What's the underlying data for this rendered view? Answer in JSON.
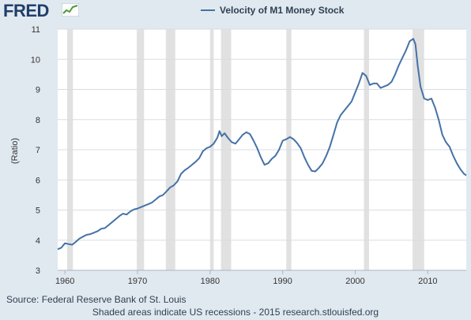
{
  "logo": {
    "text": "FRED"
  },
  "chart_data": {
    "type": "line",
    "title": "Velocity of M1 Money Stock",
    "ylabel": "(Ratio)",
    "xlabel": "",
    "xlim": [
      1959,
      2015.3
    ],
    "ylim": [
      3,
      11
    ],
    "x_ticks": [
      1960,
      1970,
      1980,
      1990,
      2000,
      2010
    ],
    "y_ticks": [
      3,
      4,
      5,
      6,
      7,
      8,
      9,
      10,
      11
    ],
    "grid": true,
    "series": [
      {
        "name": "Velocity of M1 Money Stock",
        "color": "#4572a7",
        "points": [
          [
            1959.0,
            3.7
          ],
          [
            1959.5,
            3.75
          ],
          [
            1960.0,
            3.9
          ],
          [
            1960.5,
            3.87
          ],
          [
            1961.0,
            3.85
          ],
          [
            1961.5,
            3.95
          ],
          [
            1962.0,
            4.05
          ],
          [
            1962.5,
            4.12
          ],
          [
            1963.0,
            4.18
          ],
          [
            1963.5,
            4.2
          ],
          [
            1964.0,
            4.25
          ],
          [
            1964.5,
            4.3
          ],
          [
            1965.0,
            4.38
          ],
          [
            1965.5,
            4.4
          ],
          [
            1966.0,
            4.5
          ],
          [
            1966.5,
            4.6
          ],
          [
            1967.0,
            4.7
          ],
          [
            1967.5,
            4.8
          ],
          [
            1968.0,
            4.88
          ],
          [
            1968.5,
            4.85
          ],
          [
            1969.0,
            4.95
          ],
          [
            1969.5,
            5.02
          ],
          [
            1970.0,
            5.05
          ],
          [
            1970.5,
            5.1
          ],
          [
            1971.0,
            5.15
          ],
          [
            1971.5,
            5.2
          ],
          [
            1972.0,
            5.25
          ],
          [
            1972.5,
            5.35
          ],
          [
            1973.0,
            5.45
          ],
          [
            1973.5,
            5.5
          ],
          [
            1974.0,
            5.62
          ],
          [
            1974.5,
            5.75
          ],
          [
            1975.0,
            5.82
          ],
          [
            1975.5,
            5.95
          ],
          [
            1976.0,
            6.2
          ],
          [
            1976.5,
            6.32
          ],
          [
            1977.0,
            6.4
          ],
          [
            1977.5,
            6.5
          ],
          [
            1978.0,
            6.6
          ],
          [
            1978.5,
            6.72
          ],
          [
            1979.0,
            6.95
          ],
          [
            1979.5,
            7.05
          ],
          [
            1980.0,
            7.1
          ],
          [
            1980.5,
            7.2
          ],
          [
            1981.0,
            7.4
          ],
          [
            1981.3,
            7.62
          ],
          [
            1981.6,
            7.45
          ],
          [
            1982.0,
            7.55
          ],
          [
            1982.5,
            7.38
          ],
          [
            1983.0,
            7.25
          ],
          [
            1983.5,
            7.2
          ],
          [
            1984.0,
            7.35
          ],
          [
            1984.5,
            7.5
          ],
          [
            1985.0,
            7.58
          ],
          [
            1985.5,
            7.52
          ],
          [
            1986.0,
            7.3
          ],
          [
            1986.5,
            7.05
          ],
          [
            1987.0,
            6.75
          ],
          [
            1987.5,
            6.5
          ],
          [
            1988.0,
            6.55
          ],
          [
            1988.5,
            6.7
          ],
          [
            1989.0,
            6.8
          ],
          [
            1989.5,
            7.0
          ],
          [
            1990.0,
            7.3
          ],
          [
            1990.5,
            7.35
          ],
          [
            1991.0,
            7.42
          ],
          [
            1991.5,
            7.35
          ],
          [
            1992.0,
            7.22
          ],
          [
            1992.5,
            7.05
          ],
          [
            1993.0,
            6.75
          ],
          [
            1993.5,
            6.5
          ],
          [
            1994.0,
            6.3
          ],
          [
            1994.5,
            6.28
          ],
          [
            1995.0,
            6.4
          ],
          [
            1995.5,
            6.55
          ],
          [
            1996.0,
            6.8
          ],
          [
            1996.5,
            7.1
          ],
          [
            1997.0,
            7.5
          ],
          [
            1997.5,
            7.9
          ],
          [
            1998.0,
            8.15
          ],
          [
            1998.5,
            8.3
          ],
          [
            1999.0,
            8.45
          ],
          [
            1999.5,
            8.6
          ],
          [
            2000.0,
            8.9
          ],
          [
            2000.5,
            9.2
          ],
          [
            2001.0,
            9.55
          ],
          [
            2001.5,
            9.45
          ],
          [
            2002.0,
            9.15
          ],
          [
            2002.5,
            9.2
          ],
          [
            2003.0,
            9.2
          ],
          [
            2003.5,
            9.05
          ],
          [
            2004.0,
            9.1
          ],
          [
            2004.5,
            9.15
          ],
          [
            2005.0,
            9.25
          ],
          [
            2005.5,
            9.5
          ],
          [
            2006.0,
            9.8
          ],
          [
            2006.5,
            10.05
          ],
          [
            2007.0,
            10.3
          ],
          [
            2007.5,
            10.6
          ],
          [
            2008.0,
            10.68
          ],
          [
            2008.3,
            10.5
          ],
          [
            2008.6,
            9.8
          ],
          [
            2009.0,
            9.1
          ],
          [
            2009.5,
            8.7
          ],
          [
            2010.0,
            8.65
          ],
          [
            2010.5,
            8.7
          ],
          [
            2011.0,
            8.4
          ],
          [
            2011.5,
            8.0
          ],
          [
            2012.0,
            7.5
          ],
          [
            2012.5,
            7.25
          ],
          [
            2013.0,
            7.1
          ],
          [
            2013.5,
            6.8
          ],
          [
            2014.0,
            6.55
          ],
          [
            2014.5,
            6.35
          ],
          [
            2015.0,
            6.2
          ],
          [
            2015.3,
            6.15
          ]
        ]
      }
    ],
    "recessions": [
      [
        1960.3,
        1961.1
      ],
      [
        1969.9,
        1970.9
      ],
      [
        1973.9,
        1975.2
      ],
      [
        1980.0,
        1980.5
      ],
      [
        1981.5,
        1982.9
      ],
      [
        1990.5,
        1991.2
      ],
      [
        2001.2,
        2001.9
      ],
      [
        2007.9,
        2009.5
      ]
    ],
    "recession_color": "#e1e1e1",
    "grid_color": "#d8dde3"
  },
  "footer": {
    "source": "Source: Federal Reserve Bank of St. Louis",
    "note": "Shaded areas indicate US recessions - 2015 research.stlouisfed.org"
  }
}
